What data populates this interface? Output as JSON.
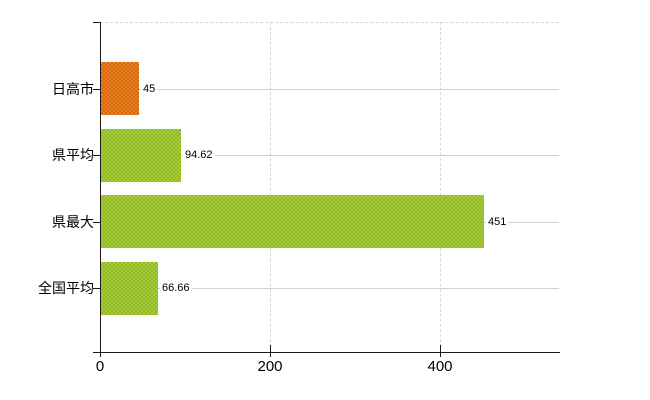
{
  "chart_data": {
    "type": "bar",
    "orientation": "horizontal",
    "title": "",
    "xlabel": "",
    "ylabel": "",
    "categories": [
      "日高市",
      "県平均",
      "県最大",
      "全国平均"
    ],
    "values": [
      45,
      94.62,
      451,
      66.66
    ],
    "value_labels": [
      "45",
      "94.62",
      "451",
      "66.66"
    ],
    "bar_styles": [
      "orange",
      "green",
      "green",
      "green"
    ],
    "x_ticks": [
      0,
      200,
      400
    ],
    "x_tick_labels": [
      "0",
      "200",
      "400"
    ],
    "xlim": [
      0,
      540
    ],
    "grid": true,
    "legend_position": "none"
  },
  "colors": {
    "orange_base": "#ec8122",
    "orange_dot": "#d4680f",
    "green_base": "#a6cd37",
    "green_dot": "#8fb928",
    "grid_h": "#cdd5c9",
    "grid_v": "#d8d8d8",
    "plot_top_border": "#d6d6d6",
    "axis": "#1a1a1a",
    "text": "#000000",
    "background": "#ffffff"
  }
}
